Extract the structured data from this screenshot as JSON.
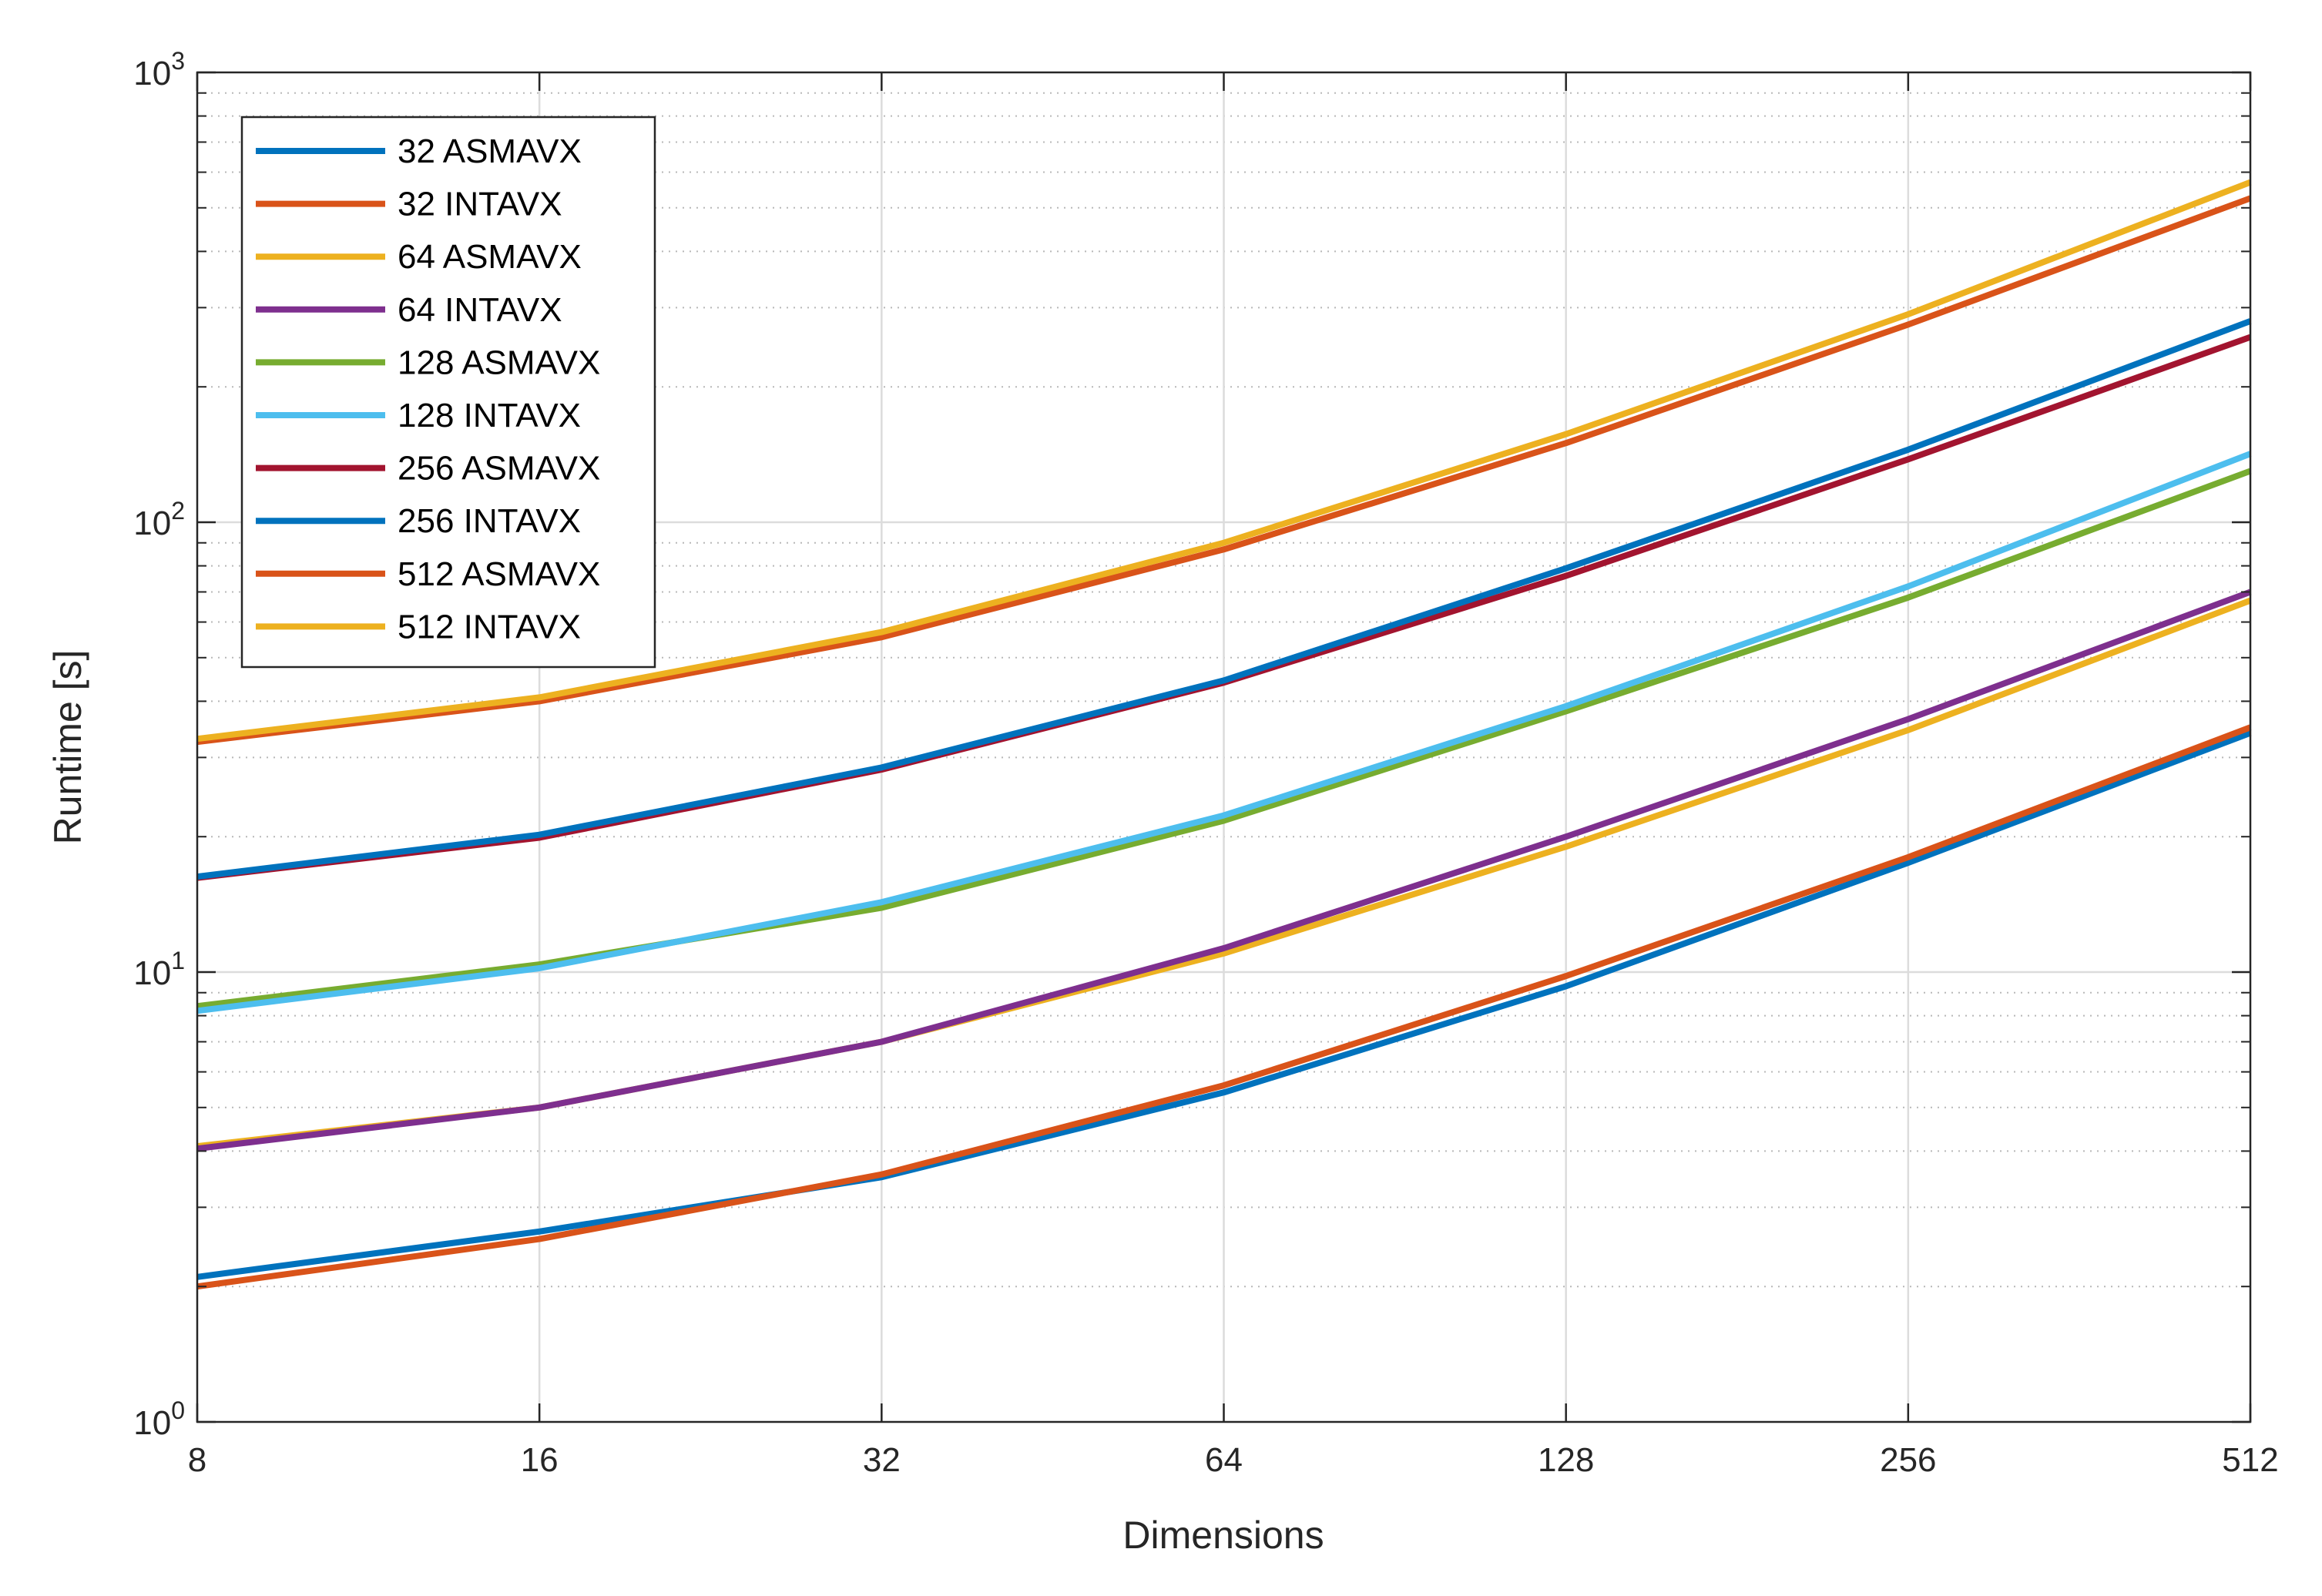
{
  "chart_data": {
    "type": "line",
    "title": "",
    "xlabel": "Dimensions",
    "ylabel": "Runtime [s]",
    "xscale": "log2",
    "yscale": "log10",
    "xlim": [
      8,
      512
    ],
    "ylim": [
      1,
      1000
    ],
    "grid": true,
    "legend_position": "top-left",
    "x": [
      8,
      16,
      32,
      64,
      128,
      256,
      512
    ],
    "x_tick_labels": [
      "8",
      "16",
      "32",
      "64",
      "128",
      "256",
      "512"
    ],
    "y_ticks": [
      {
        "base": "10",
        "exp": "0"
      },
      {
        "base": "10",
        "exp": "1"
      },
      {
        "base": "10",
        "exp": "2"
      },
      {
        "base": "10",
        "exp": "3"
      }
    ],
    "series": [
      {
        "name": "32 ASMAVX",
        "color": "#0072BD",
        "values": [
          2.1,
          2.65,
          3.5,
          5.4,
          9.3,
          17.5,
          34.0
        ]
      },
      {
        "name": "32 INTAVX",
        "color": "#D95319",
        "values": [
          2.0,
          2.55,
          3.55,
          5.6,
          9.8,
          18.0,
          35.0
        ]
      },
      {
        "name": "64 ASMAVX",
        "color": "#EDB120",
        "values": [
          4.1,
          5.0,
          7.0,
          11.0,
          19.0,
          34.5,
          67.0
        ]
      },
      {
        "name": "64 INTAVX",
        "color": "#7E2F8E",
        "values": [
          4.05,
          5.0,
          7.0,
          11.3,
          20.0,
          36.5,
          70.0
        ]
      },
      {
        "name": "128 ASMAVX",
        "color": "#77AC30",
        "values": [
          8.4,
          10.4,
          13.9,
          21.7,
          38.0,
          68.0,
          130.0
        ]
      },
      {
        "name": "128 INTAVX",
        "color": "#4DBEEE",
        "values": [
          8.2,
          10.2,
          14.3,
          22.3,
          39.0,
          72.0,
          142.0
        ]
      },
      {
        "name": "256 ASMAVX",
        "color": "#A2142F",
        "values": [
          16.2,
          19.9,
          28.2,
          44.0,
          76.0,
          138.0,
          258.0
        ]
      },
      {
        "name": "256 INTAVX",
        "color": "#0072BD",
        "values": [
          16.3,
          20.2,
          28.5,
          44.5,
          79.0,
          145.0,
          280.0
        ]
      },
      {
        "name": "512 ASMAVX",
        "color": "#D95319",
        "values": [
          32.5,
          40.0,
          55.5,
          87.0,
          150.0,
          275.0,
          525.0
        ]
      },
      {
        "name": "512 INTAVX",
        "color": "#EDB120",
        "values": [
          33.0,
          40.8,
          57.0,
          90.0,
          157.0,
          290.0,
          570.0
        ]
      }
    ]
  }
}
